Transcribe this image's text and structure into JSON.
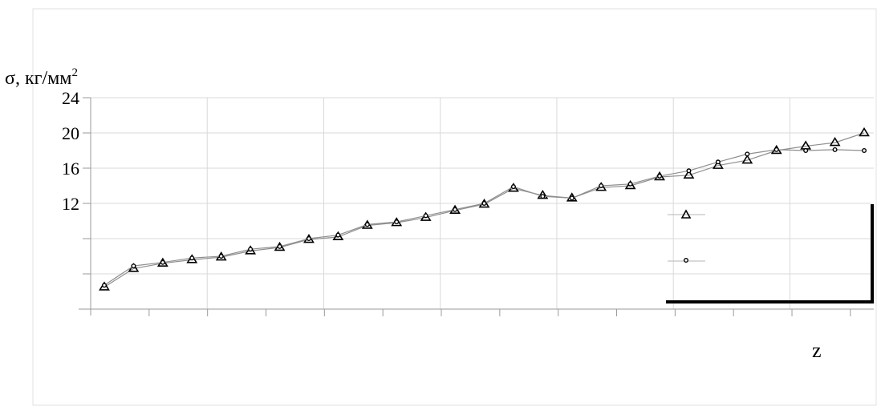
{
  "chart_data": {
    "type": "line",
    "ylabel_main": "σ, кг/мм",
    "ylabel_sup": "2",
    "xlabel": "z",
    "ylim": [
      0,
      24
    ],
    "yticks": [
      24,
      20,
      16,
      12
    ],
    "grid": true,
    "legend_placement": "bottom-right",
    "series": [
      {
        "marker": "triangle",
        "values": [
          2.5,
          4.6,
          5.2,
          5.6,
          5.9,
          6.6,
          7.0,
          7.9,
          8.2,
          9.5,
          9.8,
          10.4,
          11.2,
          11.9,
          13.7,
          12.9,
          12.6,
          13.8,
          14.0,
          15.0,
          15.2,
          16.3,
          16.9,
          18.0,
          18.5,
          18.9,
          20.0
        ]
      },
      {
        "marker": "circle",
        "values": [
          2.7,
          4.9,
          5.3,
          5.8,
          6.0,
          6.8,
          7.1,
          8.0,
          8.4,
          9.6,
          9.9,
          10.6,
          11.3,
          12.0,
          13.9,
          12.8,
          12.6,
          14.0,
          14.2,
          15.1,
          15.7,
          16.7,
          17.6,
          18.1,
          18.0,
          18.1,
          18.0
        ]
      }
    ]
  },
  "colors": {
    "line": "#8f8f8f",
    "marker": "#000000",
    "grid": "#d9d9d9"
  }
}
